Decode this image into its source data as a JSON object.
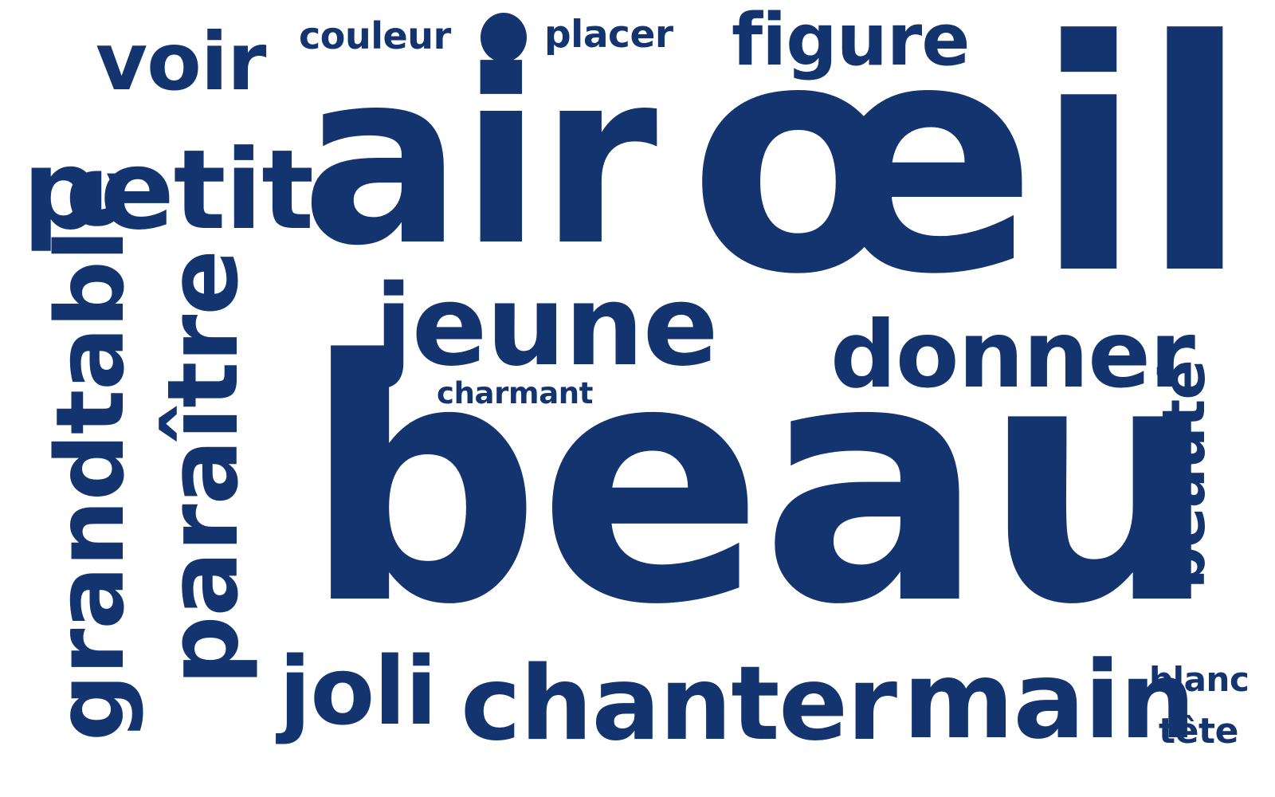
{
  "cloud": {
    "color": "#13346f",
    "background": "#ffffff",
    "words": {
      "air": "air",
      "oeil": "œil",
      "beau": "beau",
      "jeune": "jeune",
      "donner": "donner",
      "charmant": "charmant",
      "petit": "petit",
      "voir": "voir",
      "couleur": "couleur",
      "placer": "placer",
      "figure": "figure",
      "grandtable": "grandtable",
      "paraitre": "paraître",
      "beaute": "beauté",
      "joli": "joli",
      "chanter": "chanter",
      "main": "main",
      "blanc": "blanc",
      "tete": "tête"
    }
  }
}
